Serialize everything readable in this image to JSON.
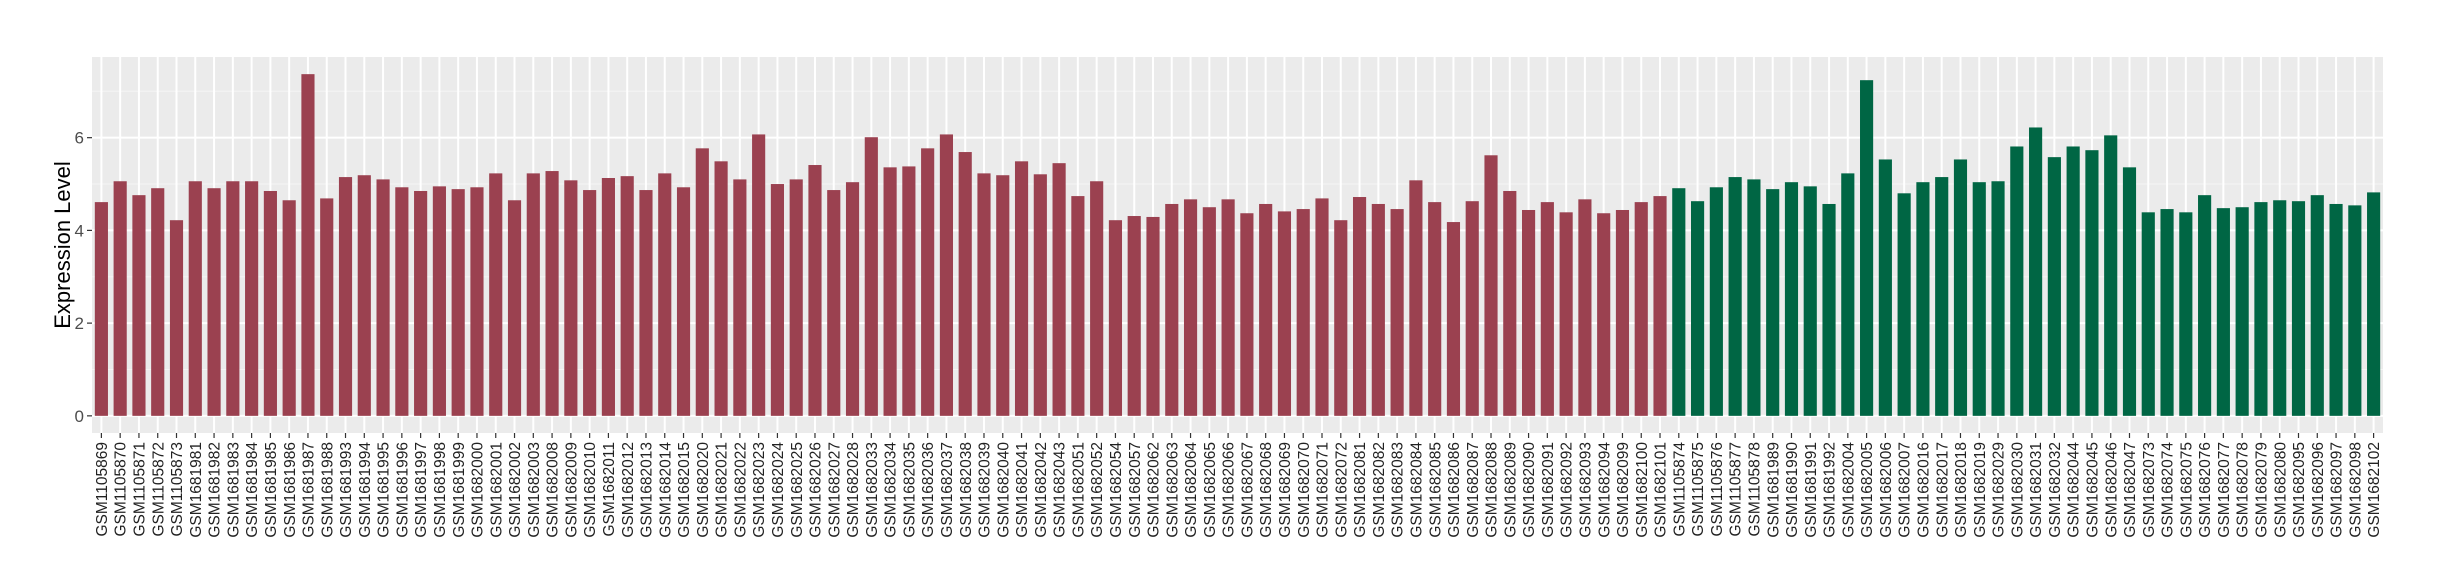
{
  "chart_data": {
    "type": "bar",
    "title": "",
    "xlabel": "",
    "ylabel": "Expression Level",
    "ylim": [
      -0.37,
      7.74
    ],
    "yticks": [
      0,
      2,
      4,
      6
    ],
    "grid": true,
    "colors": {
      "group1": "#9b4150",
      "group2": "#006644",
      "panel": "#ebebeb",
      "grid": "#ffffff"
    },
    "categories": [
      "GSM1105869",
      "GSM1105870",
      "GSM1105871",
      "GSM1105872",
      "GSM1105873",
      "GSM1681981",
      "GSM1681982",
      "GSM1681983",
      "GSM1681984",
      "GSM1681985",
      "GSM1681986",
      "GSM1681987",
      "GSM1681988",
      "GSM1681993",
      "GSM1681994",
      "GSM1681995",
      "GSM1681996",
      "GSM1681997",
      "GSM1681998",
      "GSM1681999",
      "GSM1682000",
      "GSM1682001",
      "GSM1682002",
      "GSM1682003",
      "GSM1682008",
      "GSM1682009",
      "GSM1682010",
      "GSM1682011",
      "GSM1682012",
      "GSM1682013",
      "GSM1682014",
      "GSM1682015",
      "GSM1682020",
      "GSM1682021",
      "GSM1682022",
      "GSM1682023",
      "GSM1682024",
      "GSM1682025",
      "GSM1682026",
      "GSM1682027",
      "GSM1682028",
      "GSM1682033",
      "GSM1682034",
      "GSM1682035",
      "GSM1682036",
      "GSM1682037",
      "GSM1682038",
      "GSM1682039",
      "GSM1682040",
      "GSM1682041",
      "GSM1682042",
      "GSM1682043",
      "GSM1682051",
      "GSM1682052",
      "GSM1682054",
      "GSM1682057",
      "GSM1682062",
      "GSM1682063",
      "GSM1682064",
      "GSM1682065",
      "GSM1682066",
      "GSM1682067",
      "GSM1682068",
      "GSM1682069",
      "GSM1682070",
      "GSM1682071",
      "GSM1682072",
      "GSM1682081",
      "GSM1682082",
      "GSM1682083",
      "GSM1682084",
      "GSM1682085",
      "GSM1682086",
      "GSM1682087",
      "GSM1682088",
      "GSM1682089",
      "GSM1682090",
      "GSM1682091",
      "GSM1682092",
      "GSM1682093",
      "GSM1682094",
      "GSM1682099",
      "GSM1682100",
      "GSM1682101",
      "GSM1105874",
      "GSM1105875",
      "GSM1105876",
      "GSM1105877",
      "GSM1105878",
      "GSM1681989",
      "GSM1681990",
      "GSM1681991",
      "GSM1681992",
      "GSM1682004",
      "GSM1682005",
      "GSM1682006",
      "GSM1682007",
      "GSM1682016",
      "GSM1682017",
      "GSM1682018",
      "GSM1682019",
      "GSM1682029",
      "GSM1682030",
      "GSM1682031",
      "GSM1682032",
      "GSM1682044",
      "GSM1682045",
      "GSM1682046",
      "GSM1682047",
      "GSM1682073",
      "GSM1682074",
      "GSM1682075",
      "GSM1682076",
      "GSM1682077",
      "GSM1682078",
      "GSM1682079",
      "GSM1682080",
      "GSM1682095",
      "GSM1682096",
      "GSM1682097",
      "GSM1682098",
      "GSM1682102"
    ],
    "values": [
      4.61,
      5.06,
      4.76,
      4.91,
      4.22,
      5.06,
      4.91,
      5.06,
      5.06,
      4.85,
      4.65,
      7.37,
      4.69,
      5.15,
      5.19,
      5.1,
      4.93,
      4.85,
      4.95,
      4.89,
      4.93,
      5.23,
      4.65,
      5.23,
      5.28,
      5.08,
      4.87,
      5.13,
      5.17,
      4.87,
      5.23,
      4.93,
      5.77,
      5.49,
      5.1,
      6.07,
      5.0,
      5.1,
      5.41,
      4.87,
      5.04,
      6.01,
      5.36,
      5.38,
      5.77,
      6.07,
      5.69,
      5.23,
      5.19,
      5.49,
      5.21,
      5.45,
      4.74,
      5.06,
      4.22,
      4.31,
      4.29,
      4.57,
      4.67,
      4.5,
      4.67,
      4.37,
      4.57,
      4.41,
      4.46,
      4.69,
      4.22,
      4.72,
      4.57,
      4.46,
      5.08,
      4.61,
      4.18,
      4.63,
      5.62,
      4.85,
      4.44,
      4.61,
      4.39,
      4.67,
      4.37,
      4.44,
      4.61,
      4.74,
      4.91,
      4.63,
      4.93,
      5.15,
      5.1,
      4.89,
      5.04,
      4.95,
      4.57,
      5.23,
      7.24,
      5.53,
      4.8,
      5.04,
      5.15,
      5.53,
      5.04,
      5.06,
      5.81,
      6.22,
      5.58,
      5.81,
      5.73,
      6.05,
      5.36,
      4.39,
      4.46,
      4.39,
      4.76,
      4.48,
      4.5,
      4.61,
      4.65,
      4.63,
      4.76,
      4.57,
      4.54,
      4.82
    ],
    "group_sizes": [
      84,
      38
    ]
  }
}
